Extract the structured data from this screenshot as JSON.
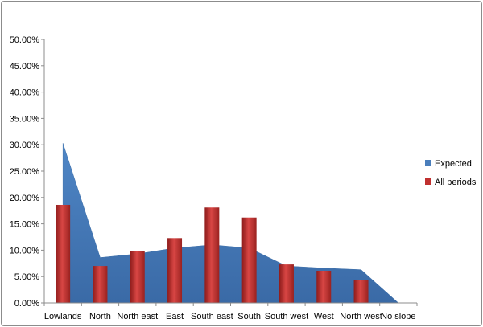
{
  "chart_data": {
    "type": "area+bar",
    "categories": [
      "Lowlands",
      "North",
      "North east",
      "East",
      "South east",
      "South",
      "South west",
      "West",
      "North west",
      "No slope"
    ],
    "series": [
      {
        "name": "Expected",
        "type": "area",
        "color": "#4a7ebb",
        "values": [
          30.3,
          8.6,
          9.3,
          10.4,
          11.0,
          10.4,
          7.0,
          6.6,
          6.3,
          0.0
        ]
      },
      {
        "name": "All periods",
        "type": "bar",
        "color": "#c0302f",
        "values": [
          18.6,
          7.0,
          9.9,
          12.3,
          18.1,
          16.2,
          7.3,
          6.1,
          4.3,
          0.0
        ]
      }
    ],
    "ylim": [
      0,
      50
    ],
    "yticks": [
      "0.00%",
      "5.00%",
      "10.00%",
      "15.00%",
      "20.00%",
      "25.00%",
      "30.00%",
      "35.00%",
      "40.00%",
      "45.00%",
      "50.00%"
    ],
    "grid": false,
    "legend_position": "right"
  }
}
